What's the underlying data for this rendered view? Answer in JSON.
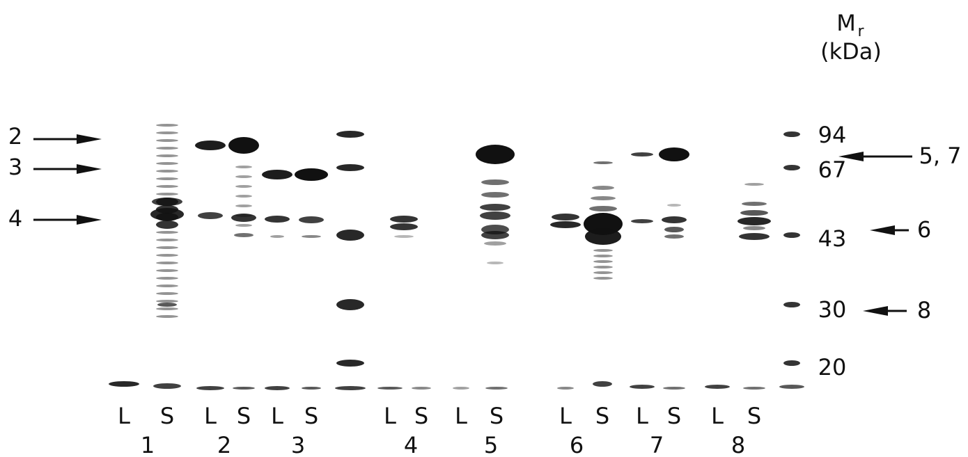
{
  "axis_label": {
    "symbol": "M",
    "subscript": "r",
    "unit": "(kDa)"
  },
  "markers": [
    "94",
    "67",
    "43",
    "30",
    "20"
  ],
  "left_arrows": [
    "2",
    "3",
    "4"
  ],
  "right_arrows": [
    "5, 7",
    "6",
    "8"
  ],
  "lanes": [
    "L",
    "S",
    "L",
    "S",
    "L",
    "S",
    "L",
    "S",
    "L",
    "S",
    "L",
    "S",
    "L",
    "S",
    "L",
    "S"
  ],
  "samples": [
    "1",
    "2",
    "3",
    "4",
    "5",
    "6",
    "7",
    "8"
  ]
}
